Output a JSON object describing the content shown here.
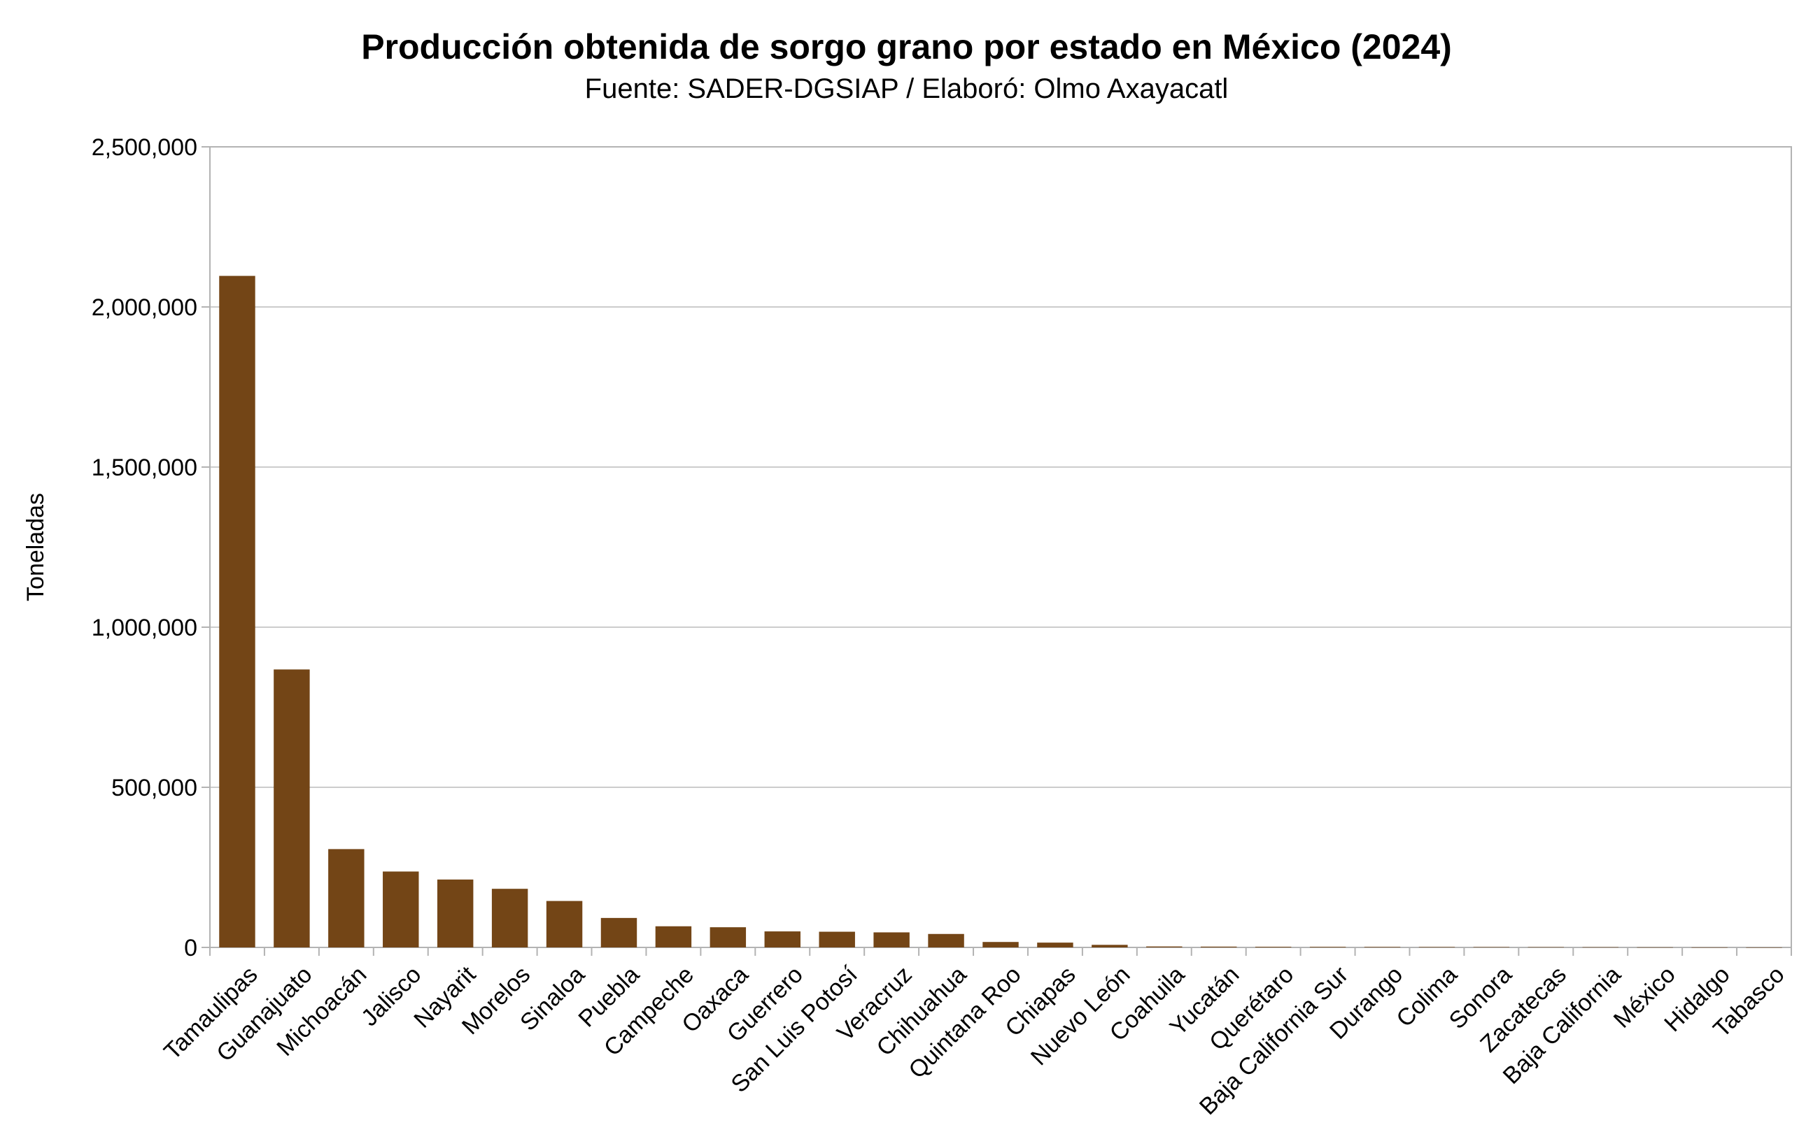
{
  "chart_data": {
    "type": "bar",
    "title": "Producción obtenida de sorgo grano por estado en México (2024)",
    "subtitle": "Fuente: SADER-DGSIAP / Elaboró: Olmo Axayacatl",
    "xlabel": "",
    "ylabel": "Toneladas",
    "ylim": [
      0,
      2500000
    ],
    "yticks": [
      0,
      500000,
      1000000,
      1500000,
      2000000,
      2500000
    ],
    "ytick_labels": [
      "0",
      "500,000",
      "1,000,000",
      "1,500,000",
      "2,000,000",
      "2,500,000"
    ],
    "grid": true,
    "bar_color": "#734516",
    "categories": [
      "Tamaulipas",
      "Guanajuato",
      "Michoacán",
      "Jalisco",
      "Nayarit",
      "Morelos",
      "Sinaloa",
      "Puebla",
      "Campeche",
      "Oaxaca",
      "Guerrero",
      "San Luis Potosí",
      "Veracruz",
      "Chihuahua",
      "Quintana Roo",
      "Chiapas",
      "Nuevo León",
      "Coahuila",
      "Yucatán",
      "Querétaro",
      "Baja California Sur",
      "Durango",
      "Colima",
      "Sonora",
      "Zacatecas",
      "Baja California",
      "México",
      "Hidalgo",
      "Tabasco"
    ],
    "values": [
      2097000,
      868000,
      307000,
      237000,
      212000,
      183000,
      145000,
      92000,
      66000,
      63000,
      50000,
      49000,
      47000,
      42000,
      17000,
      15000,
      8000,
      3000,
      2500,
      2000,
      1800,
      1600,
      1400,
      1200,
      1000,
      800,
      500,
      300,
      150
    ]
  }
}
